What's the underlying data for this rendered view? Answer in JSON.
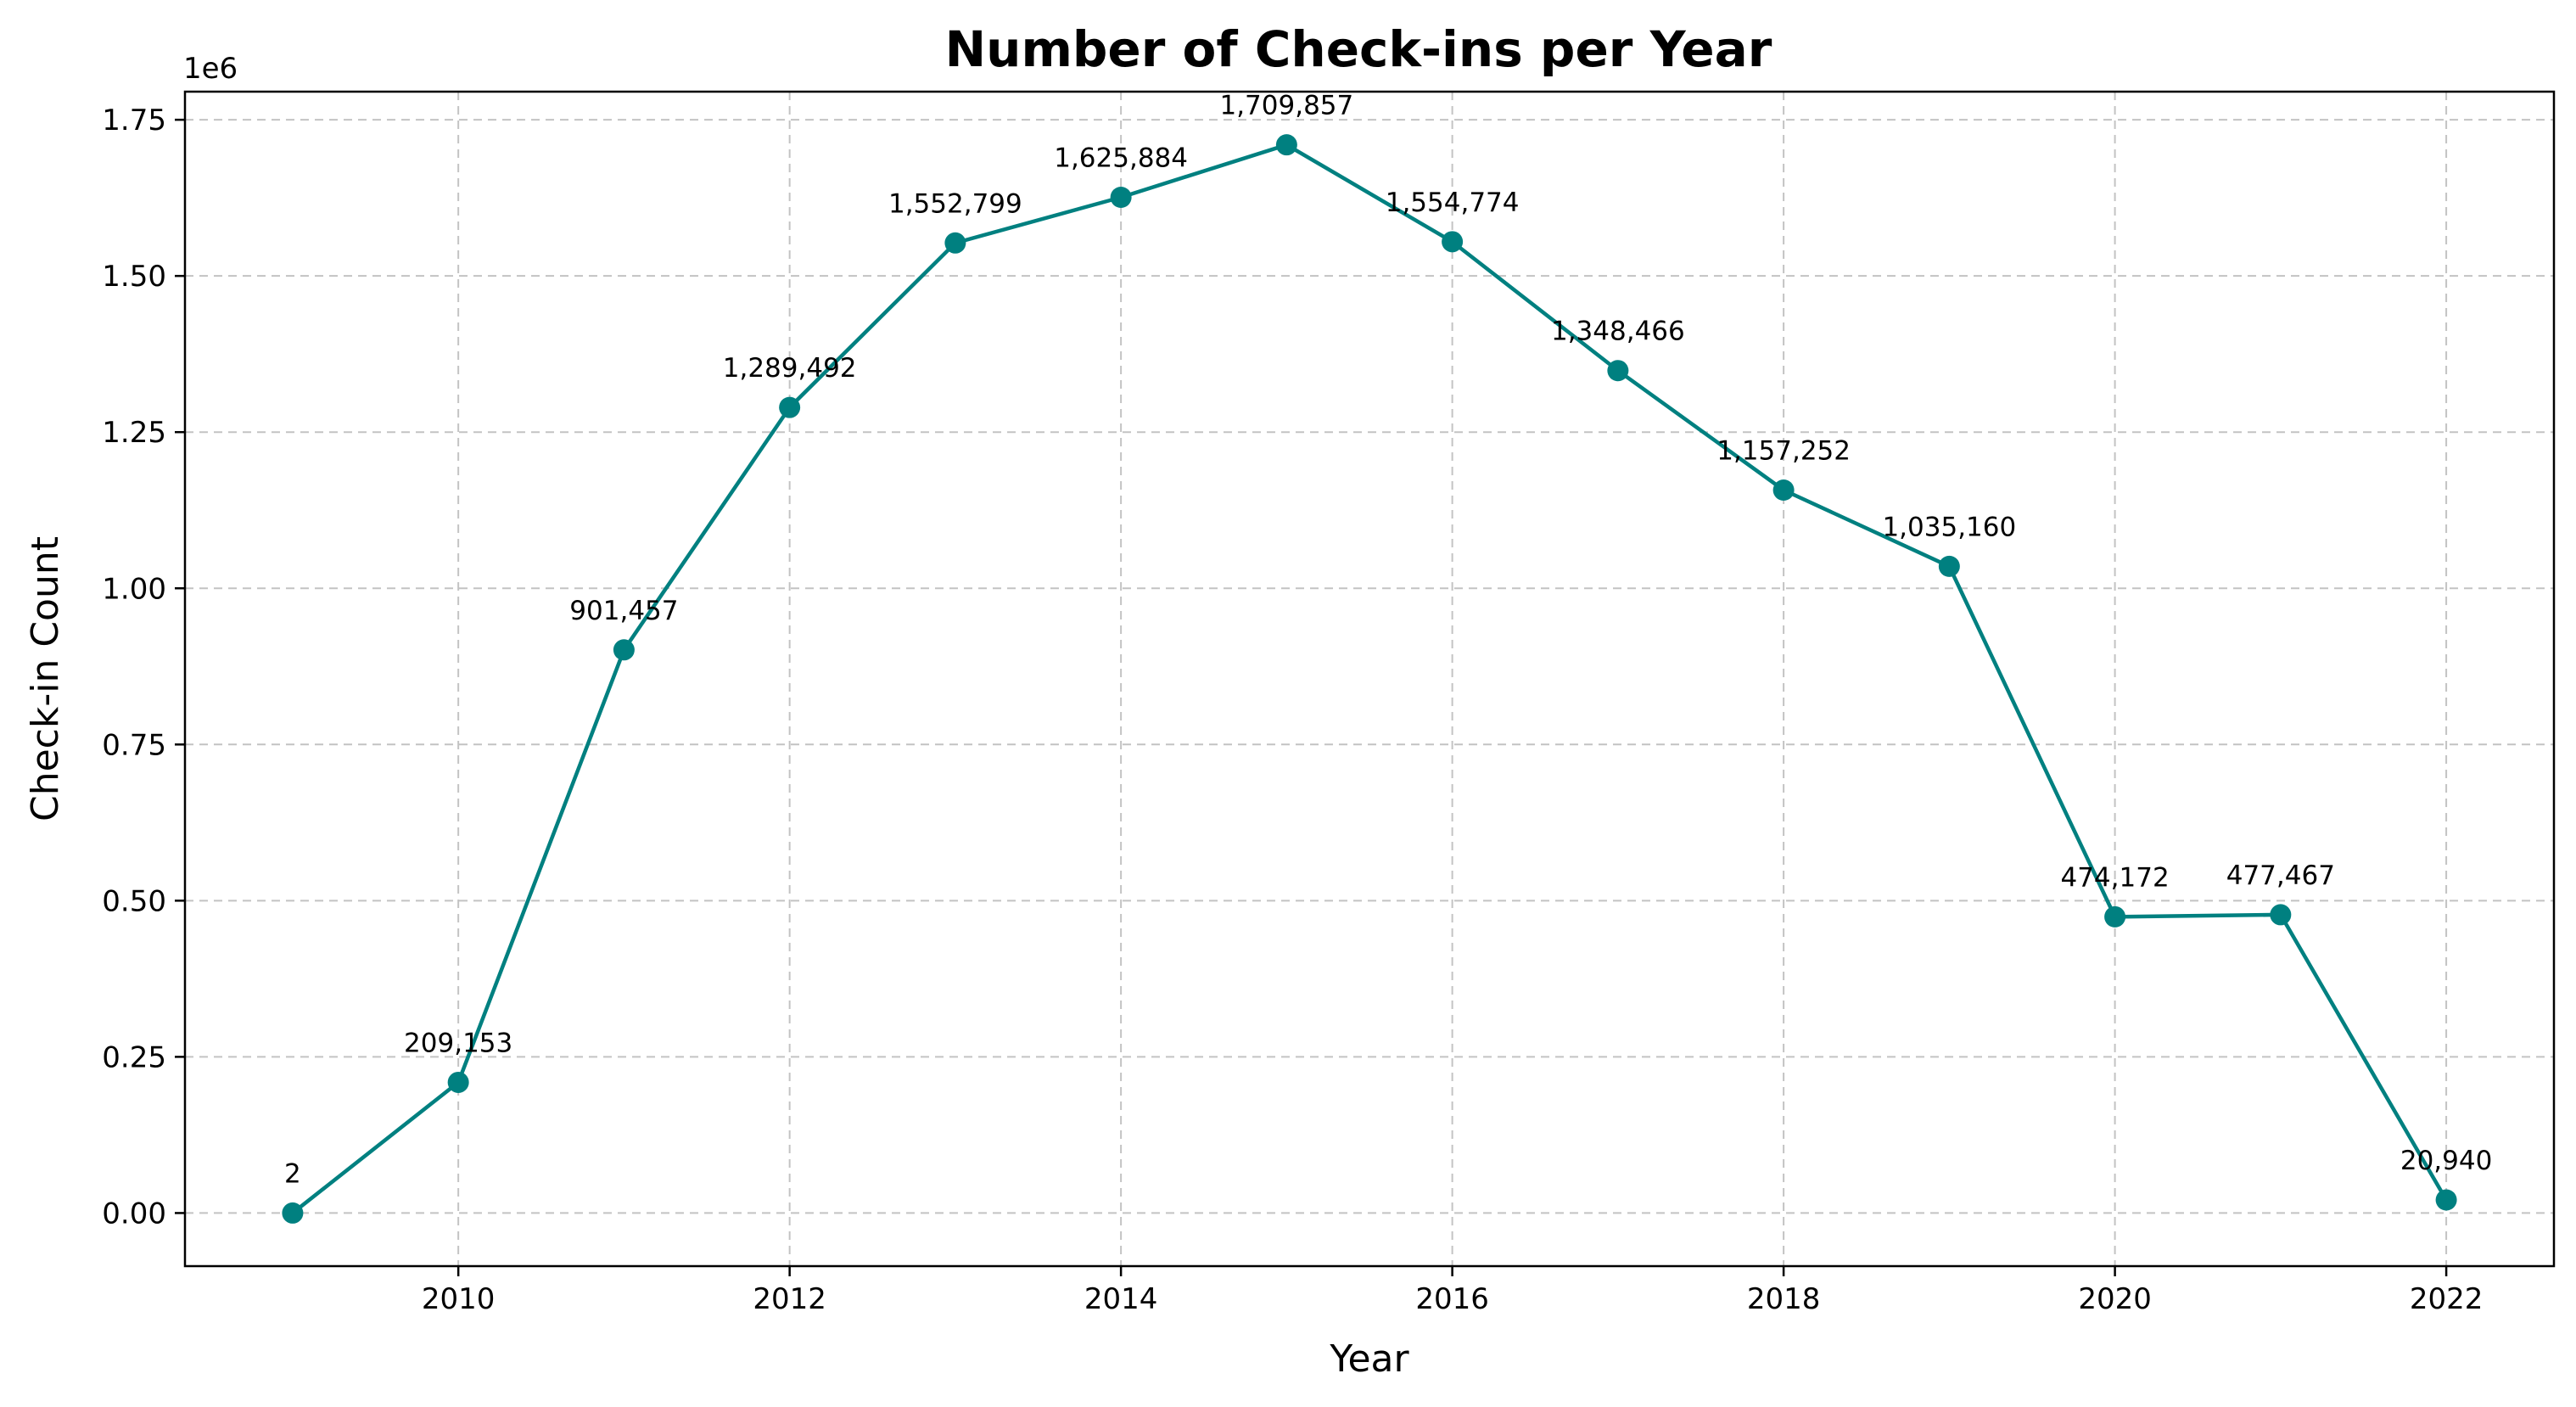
{
  "chart_data": {
    "type": "line",
    "title": "Number of Check-ins per Year",
    "xlabel": "Year",
    "ylabel": "Check-in Count",
    "y_offset_label": "1e6",
    "x": [
      2009,
      2010,
      2011,
      2012,
      2013,
      2014,
      2015,
      2016,
      2017,
      2018,
      2019,
      2020,
      2021,
      2022
    ],
    "series": [
      {
        "values": [
          2,
          209153,
          901457,
          1289492,
          1552799,
          1625884,
          1709857,
          1554774,
          1348466,
          1157252,
          1035160,
          474172,
          477467,
          20940
        ],
        "labels": [
          "2",
          "209,153",
          "901,457",
          "1,289,492",
          "1,552,799",
          "1,625,884",
          "1,709,857",
          "1,554,774",
          "1,348,466",
          "1,157,252",
          "1,035,160",
          "474,172",
          "477,467",
          "20,940"
        ],
        "color": "#008080"
      }
    ],
    "xlim": [
      2008.35,
      2022.65
    ],
    "ylim": [
      -85000,
      1795000
    ],
    "x_ticks": [
      2010,
      2012,
      2014,
      2016,
      2018,
      2020,
      2022
    ],
    "x_tick_labels": [
      "2010",
      "2012",
      "2014",
      "2016",
      "2018",
      "2020",
      "2022"
    ],
    "y_ticks": [
      0,
      250000,
      500000,
      750000,
      1000000,
      1250000,
      1500000,
      1750000
    ],
    "y_tick_labels": [
      "0.00",
      "0.25",
      "0.50",
      "0.75",
      "1.00",
      "1.25",
      "1.50",
      "1.75"
    ],
    "grid": true,
    "marker": "circle"
  }
}
